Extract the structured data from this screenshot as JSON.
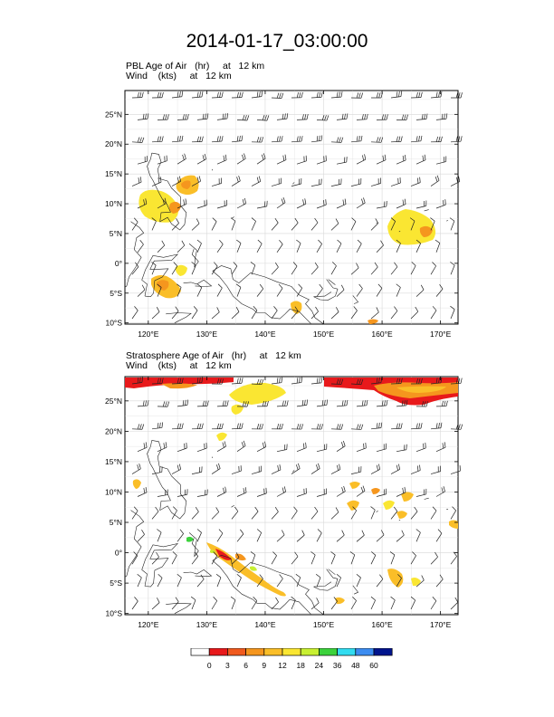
{
  "title": "2014-01-17_03:00:00",
  "panels": [
    {
      "id": "pbl",
      "title_line1": "PBL Age of Air   (hr)     at   12 km",
      "title_line2": "Wind    (kts)     at   12 km",
      "lat_labels": [
        "25°N",
        "20°N",
        "15°N",
        "10°N",
        "5°N",
        "0°",
        "5°S",
        "10°S"
      ],
      "lon_labels": [
        "120°E",
        "130°E",
        "140°E",
        "150°E",
        "160°E",
        "170°E"
      ]
    },
    {
      "id": "strat",
      "title_line1": "Stratosphere Age of Air   (hr)     at   12 km",
      "title_line2": "Wind    (kts)     at   12 km",
      "lat_labels": [
        "25°N",
        "20°N",
        "15°N",
        "10°N",
        "5°N",
        "0°",
        "5°S",
        "10°S"
      ],
      "lon_labels": [
        "120°E",
        "130°E",
        "140°E",
        "150°E",
        "160°E",
        "170°E"
      ]
    }
  ],
  "colorbar": {
    "colors": [
      "#ffffff",
      "#e8191b",
      "#f05a1e",
      "#f5961e",
      "#fabe28",
      "#fae632",
      "#c8f032",
      "#3cd23c",
      "#32dcf0",
      "#3c8cf0",
      "#00148c"
    ],
    "labels": [
      "0",
      "3",
      "6",
      "9",
      "12",
      "18",
      "24",
      "36",
      "48",
      "60"
    ]
  }
}
